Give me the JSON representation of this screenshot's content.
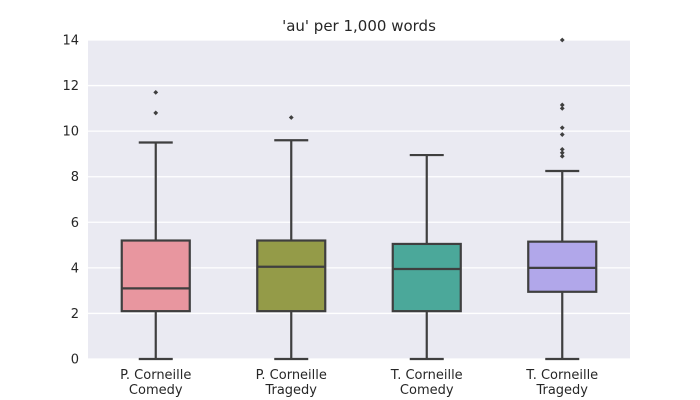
{
  "chart_data": {
    "type": "box",
    "title": "'au' per 1,000 words",
    "xlabel": "",
    "ylabel": "",
    "ylim": [
      0,
      14
    ],
    "yticks": [
      0,
      2,
      4,
      6,
      8,
      10,
      12,
      14
    ],
    "grid": true,
    "background": "#EAEAF2",
    "categories": [
      {
        "line1": "P. Corneille",
        "line2": "Comedy",
        "color": "#E8969F",
        "whisker_low": 0,
        "q1": 2.1,
        "median": 3.1,
        "q3": 5.2,
        "whisker_high": 9.5,
        "outliers": [
          10.8,
          11.7
        ]
      },
      {
        "line1": "P. Corneille",
        "line2": "Tragedy",
        "color": "#949B48",
        "whisker_low": 0,
        "q1": 2.1,
        "median": 4.05,
        "q3": 5.2,
        "whisker_high": 9.6,
        "outliers": [
          10.6
        ]
      },
      {
        "line1": "T. Corneille",
        "line2": "Comedy",
        "color": "#4BA89A",
        "whisker_low": 0,
        "q1": 2.1,
        "median": 3.95,
        "q3": 5.05,
        "whisker_high": 8.95,
        "outliers": []
      },
      {
        "line1": "T. Corneille",
        "line2": "Tragedy",
        "color": "#B1A7EA",
        "whisker_low": 0,
        "q1": 2.95,
        "median": 4.0,
        "q3": 5.15,
        "whisker_high": 8.25,
        "outliers": [
          8.9,
          9.05,
          9.2,
          9.85,
          10.15,
          11.0,
          11.15,
          14.0
        ]
      }
    ]
  }
}
